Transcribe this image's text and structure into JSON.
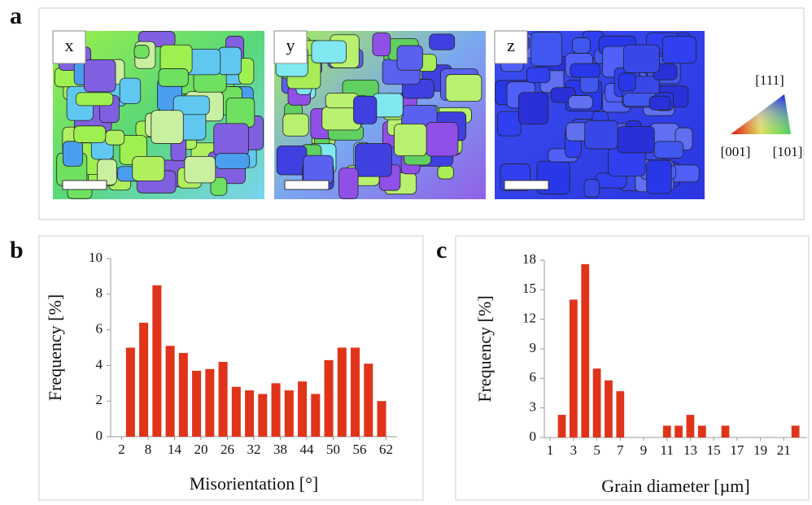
{
  "panel_labels": [
    "a",
    "b",
    "c"
  ],
  "map_labels": [
    "x",
    "y",
    "z"
  ],
  "ipf_key": {
    "top": "[111]",
    "left": "[001]",
    "right": "[101]"
  },
  "chart_data": [
    {
      "type": "bar",
      "xlabel": "Misorientation [°]",
      "ylabel": "Frequency [%]",
      "color": "#e0341a",
      "x": [
        4,
        7,
        10,
        13,
        16,
        19,
        22,
        25,
        28,
        31,
        34,
        37,
        40,
        43,
        46,
        49,
        52,
        55,
        58,
        61
      ],
      "values": [
        5.0,
        6.4,
        8.5,
        5.1,
        4.7,
        3.7,
        3.8,
        4.2,
        2.8,
        2.6,
        2.4,
        3.0,
        2.6,
        3.1,
        2.4,
        4.3,
        5.0,
        5.0,
        4.1,
        2.0
      ],
      "xlim": [
        -0.5,
        64.5
      ],
      "xticks": [
        2,
        8,
        14,
        20,
        26,
        32,
        38,
        44,
        50,
        56,
        62
      ],
      "ylim": [
        0,
        10
      ],
      "yticks": [
        0,
        2,
        4,
        6,
        8,
        10
      ]
    },
    {
      "type": "bar",
      "xlabel": "Grain diameter [µm]",
      "ylabel": "Frequency [%]",
      "color": "#e0341a",
      "x": [
        2,
        3,
        4,
        5,
        6,
        7,
        11,
        12,
        13,
        14,
        16,
        22
      ],
      "values": [
        2.3,
        14.0,
        17.6,
        7.0,
        5.8,
        4.7,
        1.2,
        1.2,
        2.3,
        1.2,
        1.2,
        1.2
      ],
      "xlim": [
        0.5,
        23
      ],
      "xticks": [
        1,
        3,
        5,
        7,
        9,
        11,
        13,
        15,
        17,
        19,
        21
      ],
      "ylim": [
        0,
        18
      ],
      "yticks": [
        0,
        3,
        6,
        9,
        12,
        15,
        18
      ]
    }
  ]
}
